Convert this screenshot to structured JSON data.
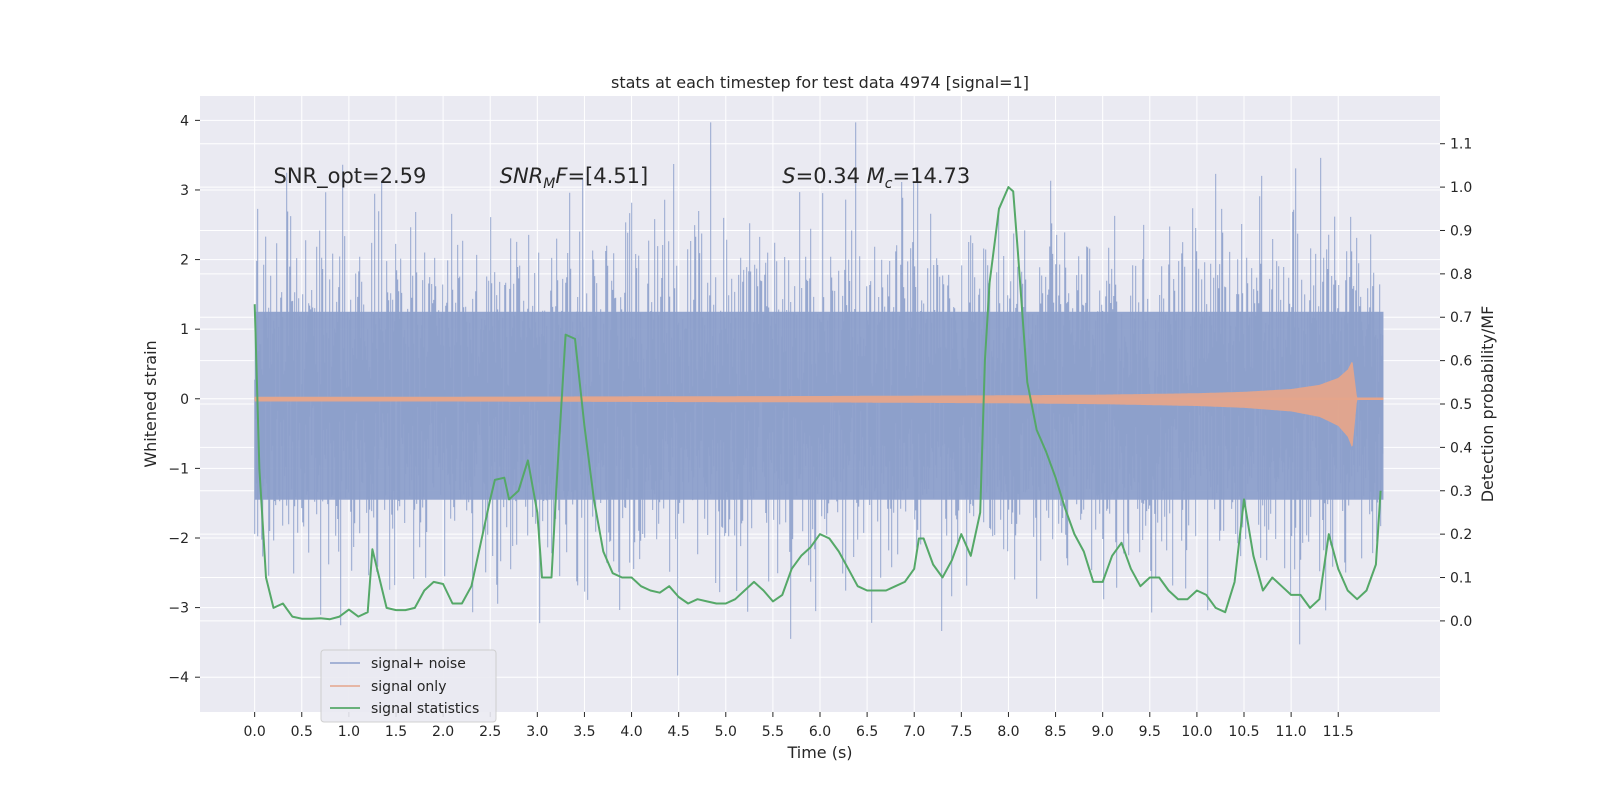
{
  "chart_data": {
    "type": "line",
    "title": "stats at each timestep for test data 4974 [signal=1]",
    "xlabel": "Time (s)",
    "ylabel_left": "Whitened strain",
    "ylabel_right": "Detection probability/MF",
    "xlim": [
      -0.58,
      12.58
    ],
    "ylim_left": [
      -4.5,
      4.35
    ],
    "ylim_right": [
      -0.21,
      1.21
    ],
    "x_ticks": [
      0.0,
      0.5,
      1.0,
      1.5,
      2.0,
      2.5,
      3.0,
      3.5,
      4.0,
      4.5,
      5.0,
      5.5,
      6.0,
      6.5,
      7.0,
      7.5,
      8.0,
      8.5,
      9.0,
      9.5,
      10.0,
      10.5,
      11.0,
      11.5
    ],
    "x_tick_labels": [
      "0.0",
      "0.5",
      "1.0",
      "1.5",
      "2.0",
      "2.5",
      "3.0",
      "3.5",
      "4.0",
      "4.5",
      "5.0",
      "5.5",
      "6.0",
      "6.5",
      "7.0",
      "7.5",
      "8.0",
      "8.5",
      "9.0",
      "9.5",
      "10.0",
      "10.5",
      "11.0",
      "11.5"
    ],
    "y_left_ticks": [
      -4,
      -3,
      -2,
      -1,
      0,
      1,
      2,
      3,
      4
    ],
    "y_left_tick_labels": [
      "−4",
      "−3",
      "−2",
      "−1",
      "0",
      "1",
      "2",
      "3",
      "4"
    ],
    "y_right_ticks": [
      0.0,
      0.1,
      0.2,
      0.3,
      0.4,
      0.5,
      0.6,
      0.7,
      0.8,
      0.9,
      1.0,
      1.1
    ],
    "y_right_tick_labels": [
      "0.0",
      "0.1",
      "0.2",
      "0.3",
      "0.4",
      "0.5",
      "0.6",
      "0.7",
      "0.8",
      "0.9",
      "1.0",
      "1.1"
    ],
    "grid": true,
    "legend": "lower-left",
    "annotations": [
      {
        "parts": [
          {
            "text": "SNR_opt=2.59",
            "style": "normal"
          }
        ],
        "x": 0.2,
        "y": 3.1
      },
      {
        "parts": [
          {
            "text": "SNR",
            "style": "italic"
          },
          {
            "text": "M",
            "style": "italic-sub"
          },
          {
            "text": "F",
            "style": "italic"
          },
          {
            "text": "=[4.51]",
            "style": "normal"
          }
        ],
        "x": 2.6,
        "y": 3.1
      },
      {
        "parts": [
          {
            "text": "S",
            "style": "italic"
          },
          {
            "text": "=0.34   ",
            "style": "normal"
          },
          {
            "text": "M",
            "style": "italic"
          },
          {
            "text": "c",
            "style": "italic-sub"
          },
          {
            "text": "=14.73",
            "style": "normal"
          }
        ],
        "x": 5.6,
        "y": 3.1
      }
    ],
    "series": [
      {
        "name": "signal+ noise",
        "axis": "left",
        "color": "#8da0cb",
        "style": "noise",
        "t_range": [
          0.0,
          11.98
        ],
        "rms": 1.0,
        "peak_range": [
          -4.1,
          3.97
        ]
      },
      {
        "name": "signal only",
        "axis": "left",
        "color": "#e5a58b",
        "style": "chirp",
        "t_range": [
          0.0,
          11.98
        ],
        "merger_time": 11.65,
        "envelope_t": [
          0.0,
          2.0,
          4.0,
          6.0,
          8.0,
          9.0,
          10.0,
          10.5,
          11.0,
          11.3,
          11.5,
          11.6,
          11.65,
          11.7,
          11.98
        ],
        "envelope_a": [
          0.03,
          0.03,
          0.035,
          0.04,
          0.05,
          0.06,
          0.08,
          0.1,
          0.14,
          0.2,
          0.3,
          0.42,
          0.55,
          0.0,
          0.0
        ]
      },
      {
        "name": "signal statistics",
        "axis": "right",
        "color": "#55a868",
        "style": "line",
        "x": [
          0.0,
          0.05,
          0.12,
          0.2,
          0.3,
          0.4,
          0.5,
          0.6,
          0.7,
          0.8,
          0.9,
          1.0,
          1.1,
          1.2,
          1.25,
          1.3,
          1.4,
          1.5,
          1.6,
          1.7,
          1.8,
          1.9,
          2.0,
          2.1,
          2.2,
          2.3,
          2.4,
          2.5,
          2.55,
          2.65,
          2.7,
          2.8,
          2.9,
          3.0,
          3.05,
          3.15,
          3.2,
          3.3,
          3.4,
          3.5,
          3.6,
          3.7,
          3.8,
          3.9,
          4.0,
          4.1,
          4.2,
          4.3,
          4.4,
          4.5,
          4.6,
          4.7,
          4.8,
          4.9,
          5.0,
          5.1,
          5.2,
          5.3,
          5.4,
          5.5,
          5.6,
          5.7,
          5.8,
          5.9,
          6.0,
          6.1,
          6.2,
          6.3,
          6.4,
          6.5,
          6.6,
          6.7,
          6.8,
          6.9,
          7.0,
          7.05,
          7.1,
          7.2,
          7.3,
          7.4,
          7.5,
          7.6,
          7.7,
          7.75,
          7.8,
          7.9,
          8.0,
          8.05,
          8.1,
          8.2,
          8.3,
          8.4,
          8.5,
          8.6,
          8.7,
          8.8,
          8.9,
          9.0,
          9.1,
          9.2,
          9.3,
          9.4,
          9.5,
          9.6,
          9.7,
          9.8,
          9.9,
          10.0,
          10.1,
          10.2,
          10.3,
          10.4,
          10.5,
          10.6,
          10.7,
          10.8,
          10.9,
          11.0,
          11.1,
          11.2,
          11.3,
          11.4,
          11.5,
          11.6,
          11.7,
          11.8,
          11.9,
          11.95
        ],
        "y": [
          0.73,
          0.35,
          0.1,
          0.03,
          0.04,
          0.01,
          0.005,
          0.005,
          0.006,
          0.004,
          0.01,
          0.026,
          0.01,
          0.02,
          0.165,
          0.12,
          0.03,
          0.025,
          0.025,
          0.03,
          0.07,
          0.09,
          0.085,
          0.04,
          0.04,
          0.08,
          0.18,
          0.28,
          0.325,
          0.33,
          0.28,
          0.3,
          0.37,
          0.25,
          0.1,
          0.1,
          0.3,
          0.66,
          0.65,
          0.45,
          0.28,
          0.16,
          0.11,
          0.1,
          0.1,
          0.08,
          0.07,
          0.065,
          0.08,
          0.055,
          0.04,
          0.05,
          0.045,
          0.04,
          0.04,
          0.05,
          0.07,
          0.09,
          0.07,
          0.045,
          0.06,
          0.12,
          0.15,
          0.17,
          0.2,
          0.19,
          0.16,
          0.12,
          0.08,
          0.07,
          0.07,
          0.07,
          0.08,
          0.09,
          0.12,
          0.19,
          0.19,
          0.13,
          0.1,
          0.14,
          0.2,
          0.15,
          0.25,
          0.6,
          0.78,
          0.95,
          1.0,
          0.99,
          0.85,
          0.55,
          0.44,
          0.39,
          0.33,
          0.26,
          0.2,
          0.16,
          0.09,
          0.09,
          0.15,
          0.18,
          0.12,
          0.08,
          0.1,
          0.1,
          0.07,
          0.05,
          0.05,
          0.07,
          0.06,
          0.03,
          0.02,
          0.09,
          0.28,
          0.15,
          0.07,
          0.1,
          0.08,
          0.06,
          0.06,
          0.03,
          0.05,
          0.2,
          0.12,
          0.07,
          0.05,
          0.07,
          0.13,
          0.3
        ]
      }
    ]
  }
}
